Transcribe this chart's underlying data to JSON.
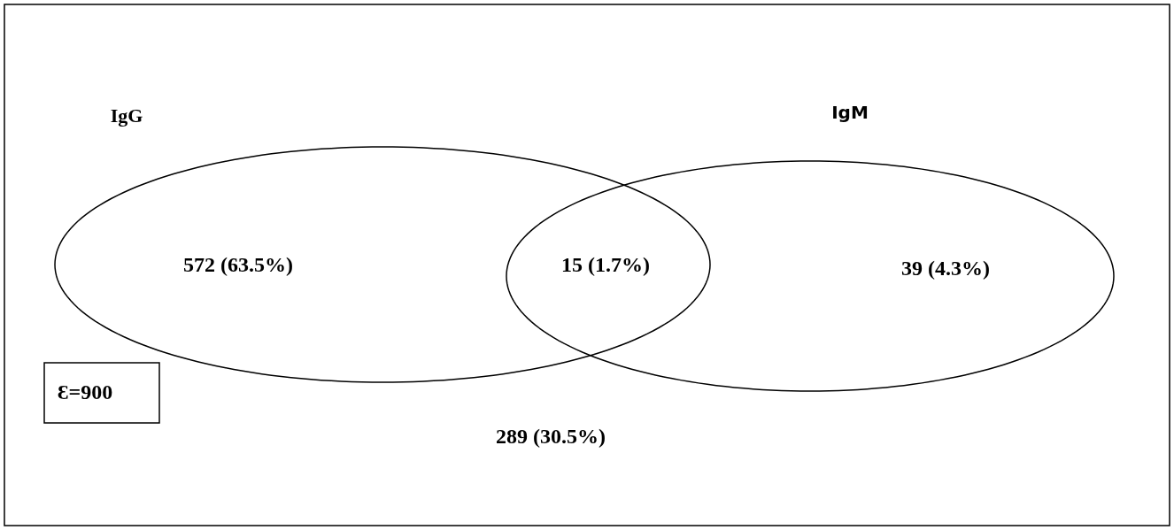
{
  "chart_data": {
    "type": "other",
    "categories": [
      null,
      null,
      null,
      null
    ],
    "values": [
      572,
      15,
      39,
      289
    ],
    "value_labels": [
      "572 (63.5%)",
      "15 (1.7%)",
      "39 (4.3%)",
      "289 (30.5%)"
    ],
    "annotations": [
      "IgG",
      "IgM",
      "Ɛ=900"
    ]
  }
}
